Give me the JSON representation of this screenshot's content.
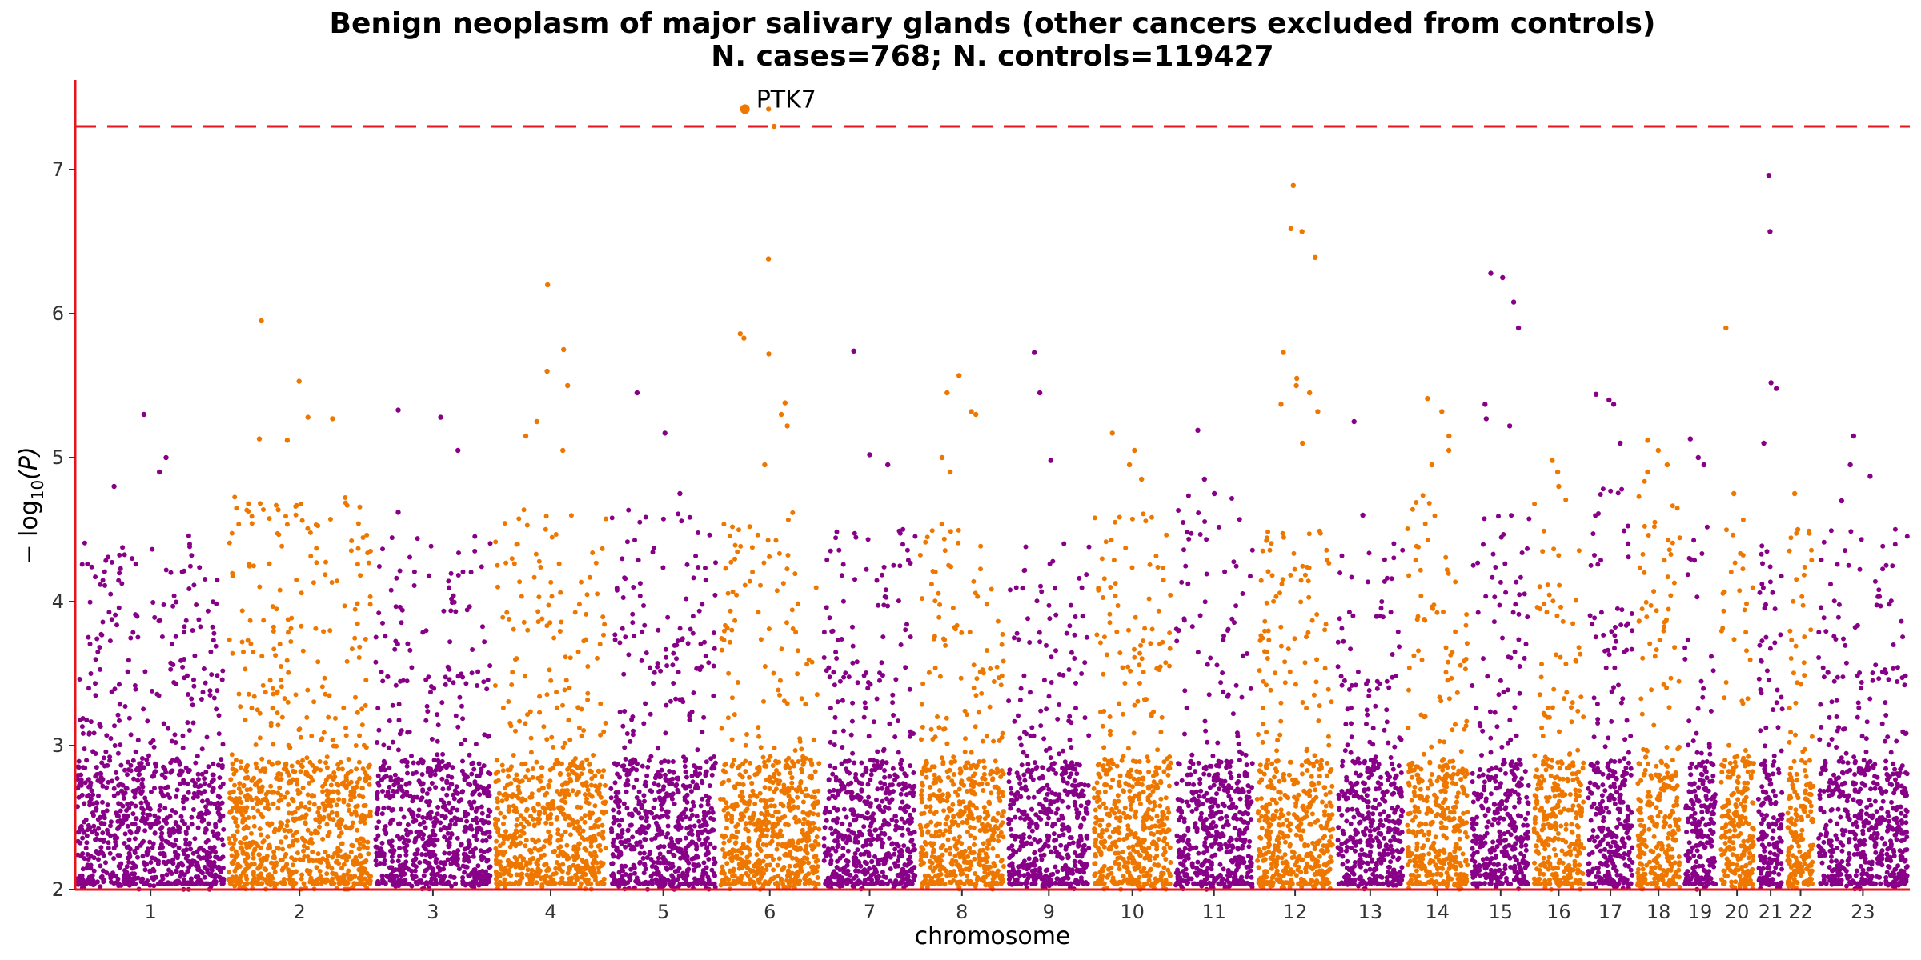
{
  "chart_data": {
    "type": "scatter",
    "subtype": "manhattan",
    "title_line1": "Benign neoplasm of major salivary glands (other cancers excluded from controls)",
    "title_line2": "N. cases=768; N. controls=119427",
    "xlabel": "chromosome",
    "ylabel_prefix": "− log",
    "ylabel_sub": "10",
    "ylabel_suffix": "(P)",
    "ylim": [
      2,
      7.6
    ],
    "yticks": [
      "2",
      "3",
      "4",
      "5",
      "6",
      "7"
    ],
    "threshold": 7.3,
    "threshold_color": "#e8141c",
    "axis_color": "#e8141c",
    "grid": false,
    "colors": [
      "#880088",
      "#ee7700"
    ],
    "chromosomes": [
      {
        "label": "1",
        "length": 249,
        "peak": 4.45,
        "color": 0,
        "hits": [
          4.8,
          5.3,
          4.9,
          5.0
        ]
      },
      {
        "label": "2",
        "length": 243,
        "peak": 4.7,
        "color": 1,
        "hits": [
          5.95,
          5.53,
          5.28,
          5.27,
          5.13,
          5.12
        ]
      },
      {
        "label": "3",
        "length": 198,
        "peak": 4.45,
        "color": 0,
        "hits": [
          5.33,
          5.28,
          5.05,
          4.62
        ]
      },
      {
        "label": "4",
        "length": 191,
        "peak": 4.6,
        "color": 1,
        "hits": [
          6.2,
          5.75,
          5.6,
          5.5,
          5.25,
          5.15,
          5.05
        ]
      },
      {
        "label": "5",
        "length": 181,
        "peak": 4.6,
        "color": 0,
        "hits": [
          5.45,
          5.17,
          4.75
        ]
      },
      {
        "label": "6",
        "length": 171,
        "peak": 4.6,
        "color": 1,
        "hits": [
          7.42,
          7.3,
          6.38,
          5.86,
          5.83,
          5.72,
          5.38,
          5.3,
          5.22,
          4.95
        ]
      },
      {
        "label": "7",
        "length": 159,
        "peak": 4.5,
        "color": 0,
        "hits": [
          5.74,
          5.02,
          4.95
        ]
      },
      {
        "label": "8",
        "length": 146,
        "peak": 4.5,
        "color": 1,
        "hits": [
          5.57,
          5.45,
          5.32,
          5.3,
          5.0,
          4.9
        ]
      },
      {
        "label": "9",
        "length": 141,
        "peak": 4.4,
        "color": 0,
        "hits": [
          5.73,
          5.45,
          4.98
        ]
      },
      {
        "label": "10",
        "length": 135,
        "peak": 4.6,
        "color": 1,
        "hits": [
          5.17,
          5.05,
          4.95,
          4.85
        ]
      },
      {
        "label": "11",
        "length": 135,
        "peak": 4.7,
        "color": 0,
        "hits": [
          5.19,
          4.85,
          4.75
        ]
      },
      {
        "label": "12",
        "length": 133,
        "peak": 4.5,
        "color": 1,
        "hits": [
          6.89,
          6.59,
          6.57,
          6.39,
          5.73,
          5.55,
          5.5,
          5.45,
          5.37,
          5.32,
          5.1
        ]
      },
      {
        "label": "13",
        "length": 115,
        "peak": 4.4,
        "color": 0,
        "hits": [
          5.25,
          4.6
        ]
      },
      {
        "label": "14",
        "length": 107,
        "peak": 4.7,
        "color": 1,
        "hits": [
          5.41,
          5.32,
          5.15,
          5.05,
          4.95
        ]
      },
      {
        "label": "15",
        "length": 102,
        "peak": 4.6,
        "color": 0,
        "hits": [
          6.28,
          6.25,
          6.08,
          5.9,
          5.37,
          5.27,
          5.22
        ]
      },
      {
        "label": "16",
        "length": 90,
        "peak": 4.7,
        "color": 1,
        "hits": [
          4.98,
          4.9,
          4.8
        ]
      },
      {
        "label": "17",
        "length": 81,
        "peak": 4.8,
        "color": 0,
        "hits": [
          5.44,
          5.4,
          5.37,
          5.1
        ]
      },
      {
        "label": "18",
        "length": 78,
        "peak": 4.8,
        "color": 1,
        "hits": [
          5.12,
          5.05,
          4.95,
          4.9
        ]
      },
      {
        "label": "19",
        "length": 59,
        "peak": 4.5,
        "color": 0,
        "hits": [
          5.13,
          5.0,
          4.95
        ]
      },
      {
        "label": "20",
        "length": 63,
        "peak": 4.6,
        "color": 1,
        "hits": [
          5.9,
          4.75
        ]
      },
      {
        "label": "21",
        "length": 48,
        "peak": 4.4,
        "color": 0,
        "hits": [
          6.96,
          6.57,
          5.52,
          5.48,
          5.1
        ]
      },
      {
        "label": "22",
        "length": 51,
        "peak": 4.5,
        "color": 1,
        "hits": [
          4.75,
          4.5
        ]
      },
      {
        "label": "23",
        "length": 155,
        "peak": 4.5,
        "color": 0,
        "hits": [
          5.15,
          4.95,
          4.87,
          4.7
        ]
      }
    ],
    "annotations": [
      {
        "label": "PTK7",
        "chromosome": "6",
        "x_frac": 0.26,
        "y": 7.42
      }
    ]
  }
}
